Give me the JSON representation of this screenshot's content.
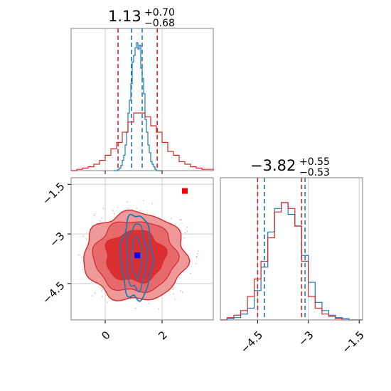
{
  "colors": {
    "blue": "#1f77b4",
    "red": "#d62728",
    "grid": "#cccccc",
    "frame": "#808080",
    "red_fill_light": "#ee9a9b",
    "red_fill_mid": "#e66a6c",
    "red_fill_dark": "#dc2f32",
    "red_scatter": "#e9a7a8",
    "truth_red": "#ff0000",
    "truth_blue": "#0000ff"
  },
  "chart_data": [
    {
      "type": "histogram",
      "panel": "top-left",
      "title": {
        "main": "1.13",
        "sup": "+0.70",
        "sub": "−0.68"
      },
      "xlim": [
        -1.2,
        3.8
      ],
      "x_ticks": [
        0,
        2
      ],
      "grid": true,
      "series": [
        {
          "color": "#1f77b4",
          "x": [
            0.3,
            0.35,
            0.4,
            0.45,
            0.5,
            0.55,
            0.6,
            0.65,
            0.7,
            0.75,
            0.8,
            0.85,
            0.9,
            0.95,
            1.0,
            1.05,
            1.1,
            1.15,
            1.2,
            1.25,
            1.3,
            1.35,
            1.4,
            1.45,
            1.5,
            1.55,
            1.6,
            1.65,
            1.7,
            1.75,
            1.8,
            1.85,
            1.9,
            1.95,
            2.0
          ],
          "y": [
            0,
            0,
            0,
            0.01,
            0.02,
            0.04,
            0.08,
            0.12,
            0.2,
            0.3,
            0.45,
            0.55,
            0.68,
            0.85,
            0.9,
            0.96,
            1.0,
            0.95,
            0.98,
            0.8,
            0.72,
            0.6,
            0.4,
            0.3,
            0.2,
            0.14,
            0.07,
            0.05,
            0.03,
            0.01,
            0,
            0,
            0,
            0,
            0
          ],
          "quantiles": [
            0.92,
            1.3
          ]
        },
        {
          "color": "#d62728",
          "x": [
            -1.2,
            -1.0,
            -0.8,
            -0.6,
            -0.4,
            -0.2,
            0.0,
            0.2,
            0.4,
            0.6,
            0.8,
            1.0,
            1.2,
            1.4,
            1.6,
            1.8,
            2.0,
            2.2,
            2.4,
            2.6,
            2.8,
            3.0,
            3.2,
            3.4,
            3.6,
            3.8
          ],
          "y": [
            0,
            0.01,
            0.02,
            0.03,
            0.05,
            0.08,
            0.12,
            0.17,
            0.22,
            0.3,
            0.38,
            0.45,
            0.45,
            0.42,
            0.35,
            0.3,
            0.22,
            0.15,
            0.12,
            0.07,
            0.05,
            0.03,
            0.02,
            0.01,
            0.01,
            0
          ],
          "quantiles": [
            0.45,
            1.83
          ]
        }
      ]
    },
    {
      "type": "contour",
      "panel": "bottom-left",
      "xlim": [
        -1.2,
        3.8
      ],
      "ylim": [
        -5.6,
        -1.3
      ],
      "x_ticks": [
        0,
        2
      ],
      "y_ticks": [
        -1.5,
        -3.0,
        -4.5
      ],
      "grid": true,
      "red_center": [
        1.05,
        -3.68
      ],
      "blue_center": [
        1.1,
        -3.7
      ],
      "truth_points": [
        {
          "x": 2.8,
          "y": -1.7,
          "color": "#ff0000"
        },
        {
          "x": 1.13,
          "y": -3.65,
          "color": "#0000ff"
        }
      ]
    },
    {
      "type": "histogram",
      "panel": "bottom-right",
      "title": {
        "main": "−3.82",
        "sup": "+0.55",
        "sub": "−0.53"
      },
      "xlim": [
        -5.6,
        -1.4
      ],
      "x_ticks": [
        -4.5,
        -3.0,
        -1.5
      ],
      "grid": true,
      "series": [
        {
          "color": "#1f77b4",
          "x": [
            -5.6,
            -5.4,
            -5.2,
            -5.0,
            -4.8,
            -4.6,
            -4.4,
            -4.2,
            -4.0,
            -3.8,
            -3.6,
            -3.4,
            -3.2,
            -3.0,
            -2.8,
            -2.6,
            -2.4,
            -2.2,
            -2.0,
            -1.8,
            -1.6,
            -1.4
          ],
          "y": [
            0,
            0.01,
            0.02,
            0.05,
            0.1,
            0.25,
            0.45,
            0.75,
            0.95,
            1.0,
            0.9,
            0.8,
            0.55,
            0.32,
            0.15,
            0.08,
            0.04,
            0.02,
            0.01,
            0,
            0,
            0
          ],
          "quantiles": [
            -4.3,
            -3.1
          ]
        },
        {
          "color": "#d62728",
          "x": [
            -5.6,
            -5.4,
            -5.2,
            -5.0,
            -4.8,
            -4.6,
            -4.4,
            -4.2,
            -4.0,
            -3.8,
            -3.6,
            -3.4,
            -3.2,
            -3.0,
            -2.8,
            -2.6,
            -2.4,
            -2.2,
            -2.0,
            -1.8,
            -1.6,
            -1.4
          ],
          "y": [
            0,
            0.02,
            0.04,
            0.08,
            0.2,
            0.35,
            0.5,
            0.7,
            0.92,
            1.0,
            0.95,
            0.8,
            0.5,
            0.2,
            0.1,
            0.05,
            0.03,
            0.01,
            0,
            0,
            0,
            0
          ],
          "quantiles": [
            -4.5,
            -3.2
          ]
        }
      ]
    }
  ]
}
